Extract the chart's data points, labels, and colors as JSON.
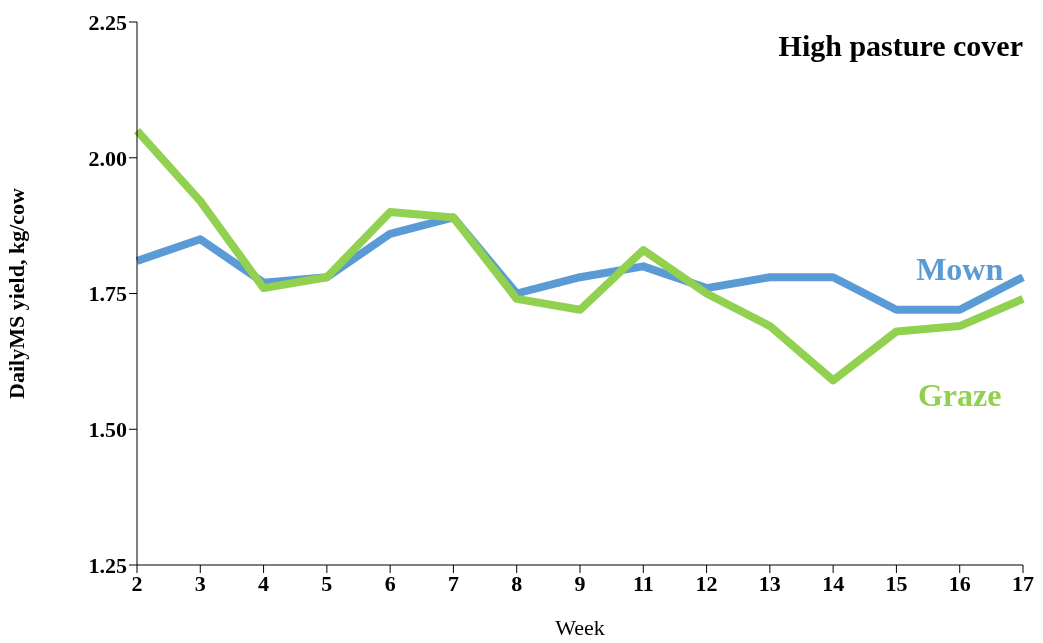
{
  "chart_data": {
    "type": "line",
    "title": "High pasture cover",
    "xlabel": "Week",
    "ylabel": "DailyMS yield, kg/cow",
    "categories": [
      "2",
      "3",
      "4",
      "5",
      "6",
      "7",
      "8",
      "9",
      "11",
      "12",
      "13",
      "14",
      "15",
      "16",
      "17"
    ],
    "series": [
      {
        "name": "Mown",
        "color": "#5b9bd5",
        "values": [
          1.81,
          1.85,
          1.77,
          1.78,
          1.86,
          1.89,
          1.75,
          1.78,
          1.8,
          1.76,
          1.78,
          1.78,
          1.72,
          1.72,
          1.78
        ]
      },
      {
        "name": "Graze",
        "color": "#92d050",
        "values": [
          2.05,
          1.92,
          1.76,
          1.78,
          1.9,
          1.89,
          1.74,
          1.72,
          1.83,
          1.75,
          1.69,
          1.59,
          1.68,
          1.69,
          1.74
        ]
      }
    ],
    "ylim": [
      1.25,
      2.25
    ],
    "yticks": [
      {
        "value": 1.25,
        "label": "1.25"
      },
      {
        "value": 1.5,
        "label": "1.50"
      },
      {
        "value": 1.75,
        "label": "1.75"
      },
      {
        "value": 2,
        "label": "2.00"
      },
      {
        "value": 2.25,
        "label": "2.25"
      }
    ],
    "grid": false,
    "legend": false,
    "marker": "none",
    "line_style": "solid"
  }
}
